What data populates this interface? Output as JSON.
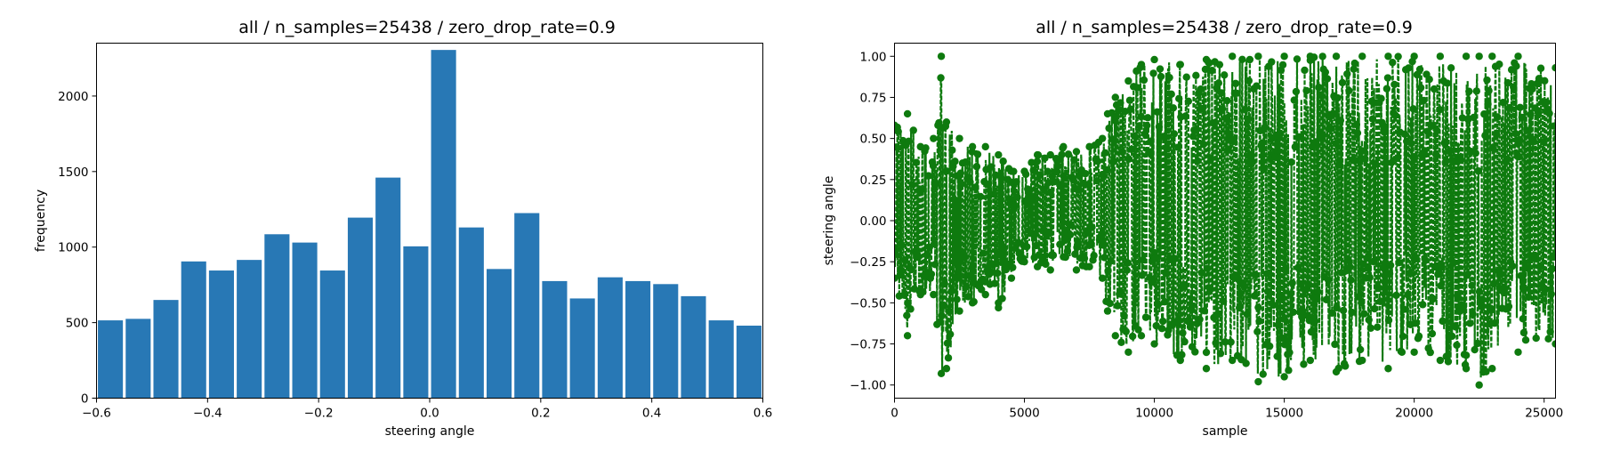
{
  "chart_data": [
    {
      "type": "bar",
      "title": "all / n_samples=25438 / zero_drop_rate=0.9",
      "xlabel": "steering angle",
      "ylabel": "frequency",
      "xlim": [
        -0.6,
        0.6
      ],
      "ylim": [
        0,
        2350
      ],
      "xticks": [
        -0.6,
        -0.4,
        -0.2,
        0.0,
        0.2,
        0.4,
        0.6
      ],
      "xtick_labels": [
        "−0.6",
        "−0.4",
        "−0.2",
        "0.0",
        "0.2",
        "0.4",
        "0.6"
      ],
      "yticks": [
        0,
        500,
        1000,
        1500,
        2000
      ],
      "ytick_labels": [
        "0",
        "500",
        "1000",
        "1500",
        "2000"
      ],
      "bin_edges": [
        -0.6,
        -0.55,
        -0.5,
        -0.45,
        -0.4,
        -0.35,
        -0.3,
        -0.25,
        -0.2,
        -0.15,
        -0.1,
        -0.05,
        0.0,
        0.05,
        0.1,
        0.15,
        0.2,
        0.25,
        0.3,
        0.35,
        0.4,
        0.45,
        0.5,
        0.55,
        0.6
      ],
      "values": [
        515,
        525,
        650,
        905,
        845,
        915,
        1085,
        1030,
        845,
        1195,
        1460,
        1005,
        2305,
        1130,
        855,
        1225,
        775,
        660,
        800,
        775,
        755,
        675,
        515,
        480
      ],
      "bar_color": "#2878b5"
    },
    {
      "type": "line",
      "title": "all / n_samples=25438 / zero_drop_rate=0.9",
      "xlabel": "sample",
      "ylabel": "steering angle",
      "xlim": [
        0,
        25438
      ],
      "ylim": [
        -1.08,
        1.08
      ],
      "xticks": [
        0,
        5000,
        10000,
        15000,
        20000,
        25000
      ],
      "xtick_labels": [
        "0",
        "5000",
        "10000",
        "15000",
        "20000",
        "25000"
      ],
      "yticks": [
        1.0,
        0.75,
        0.5,
        0.25,
        0.0,
        -0.25,
        -0.5,
        -0.75,
        -1.0
      ],
      "ytick_labels": [
        "1.00",
        "0.75",
        "0.50",
        "0.25",
        "0.00",
        "−0.25",
        "−0.50",
        "−0.75",
        "−1.00"
      ],
      "line_color": "#0e7a0e",
      "line_style": "dashed, circle markers",
      "envelope": {
        "x": [
          0,
          500,
          1000,
          1500,
          1800,
          2000,
          2500,
          3000,
          3500,
          4000,
          4500,
          5000,
          5500,
          6000,
          6500,
          7000,
          7500,
          8000,
          8200,
          8500,
          9000,
          9500,
          10000,
          11000,
          12000,
          13000,
          14000,
          15000,
          16000,
          17000,
          18000,
          19000,
          20000,
          21000,
          22000,
          22500,
          23000,
          24000,
          25438
        ],
        "min": [
          -0.35,
          -0.7,
          -0.45,
          -0.45,
          -0.93,
          -0.9,
          -0.55,
          -0.5,
          -0.45,
          -0.53,
          -0.35,
          -0.25,
          -0.28,
          -0.3,
          -0.22,
          -0.3,
          -0.28,
          -0.35,
          -0.55,
          -0.7,
          -0.8,
          -0.7,
          -0.75,
          -0.85,
          -0.9,
          -0.85,
          -0.98,
          -0.95,
          -0.85,
          -0.92,
          -0.85,
          -0.9,
          -0.8,
          -0.85,
          -0.9,
          -1.0,
          -0.9,
          -0.8,
          -0.75
        ],
        "max": [
          0.58,
          0.65,
          0.45,
          0.5,
          1.0,
          0.6,
          0.5,
          0.45,
          0.45,
          0.4,
          0.3,
          0.3,
          0.4,
          0.4,
          0.45,
          0.42,
          0.45,
          0.5,
          0.65,
          0.75,
          0.85,
          0.95,
          0.98,
          0.95,
          0.98,
          1.0,
          1.0,
          1.0,
          1.0,
          1.0,
          1.0,
          1.0,
          1.0,
          1.0,
          1.0,
          1.0,
          1.0,
          1.0,
          0.93
        ]
      }
    }
  ]
}
